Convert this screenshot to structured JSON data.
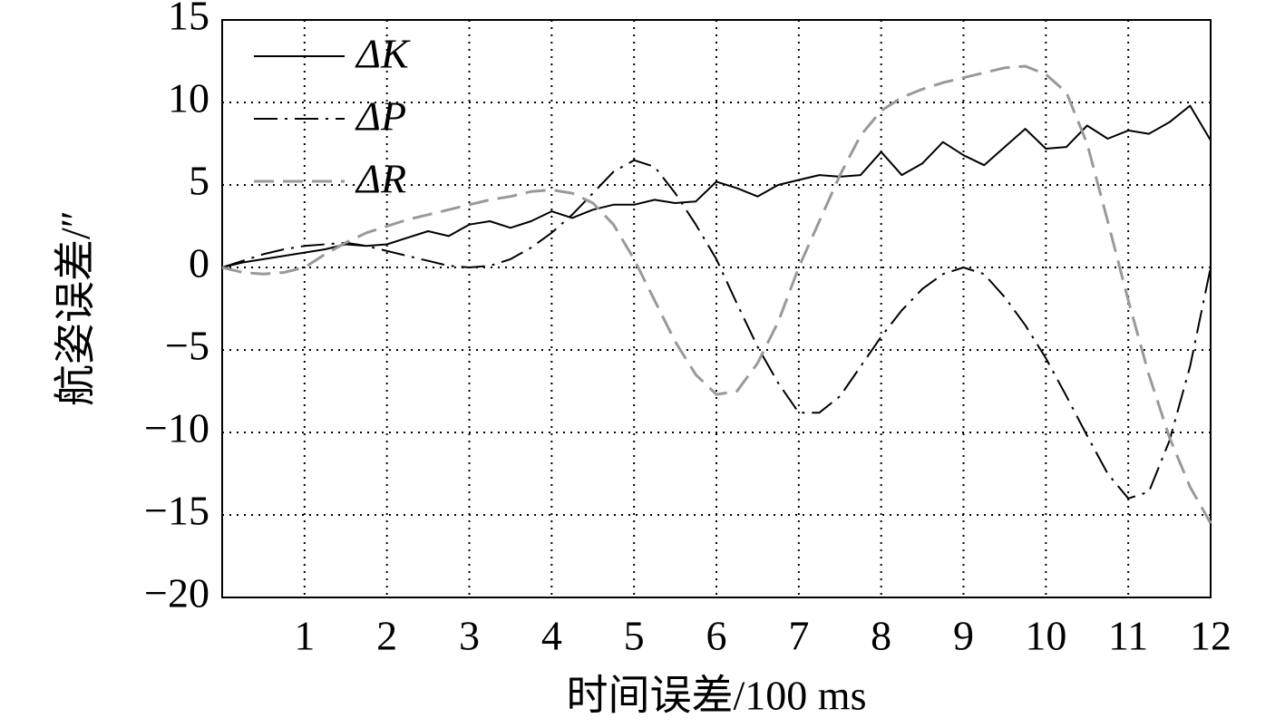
{
  "chart_data": {
    "type": "line",
    "x_label": "时间误差/100 ms",
    "y_label": "航姿误差/″",
    "x": [
      0,
      0.25,
      0.5,
      0.75,
      1,
      1.25,
      1.5,
      1.75,
      2,
      2.25,
      2.5,
      2.75,
      3,
      3.25,
      3.5,
      3.75,
      4,
      4.25,
      4.5,
      4.75,
      5,
      5.25,
      5.5,
      5.75,
      6,
      6.25,
      6.5,
      6.75,
      7,
      7.25,
      7.5,
      7.75,
      8,
      8.25,
      8.5,
      8.75,
      9,
      9.25,
      9.5,
      9.75,
      10,
      10.25,
      10.5,
      10.75,
      11,
      11.25,
      11.5,
      11.75,
      12
    ],
    "series": [
      {
        "name": "ΔK",
        "color": "#000000",
        "dash": "solid",
        "values": [
          0,
          0.3,
          0.5,
          0.7,
          0.9,
          1.1,
          1.4,
          1.3,
          1.4,
          1.8,
          2.2,
          1.9,
          2.6,
          2.8,
          2.4,
          2.8,
          3.4,
          3.0,
          3.5,
          3.8,
          3.8,
          4.1,
          3.9,
          4.0,
          5.2,
          4.8,
          4.3,
          5.0,
          5.3,
          5.6,
          5.5,
          5.6,
          7.0,
          5.6,
          6.3,
          7.6,
          6.8,
          6.2,
          7.3,
          8.4,
          7.2,
          7.3,
          8.6,
          7.8,
          8.3,
          8.1,
          8.8,
          9.8,
          7.7
        ]
      },
      {
        "name": "ΔP",
        "color": "#000000",
        "dash": "dashdot",
        "values": [
          0,
          0.4,
          0.8,
          1.1,
          1.3,
          1.4,
          1.5,
          1.3,
          1.0,
          0.7,
          0.4,
          0.1,
          0,
          0.1,
          0.5,
          1.2,
          2.1,
          3.2,
          4.5,
          5.8,
          6.5,
          6.1,
          4.5,
          2.6,
          0.5,
          -2.2,
          -4.8,
          -7.0,
          -8.8,
          -8.8,
          -7.8,
          -6.0,
          -4.2,
          -2.6,
          -1.3,
          -0.4,
          0,
          -0.4,
          -1.8,
          -3.5,
          -5.5,
          -7.8,
          -10.2,
          -12.5,
          -14.0,
          -13.6,
          -10.5,
          -6.0,
          0
        ]
      },
      {
        "name": "ΔR",
        "color": "#999999",
        "dash": "dashed",
        "values": [
          0,
          -0.3,
          -0.4,
          -0.3,
          0,
          0.8,
          1.5,
          2.1,
          2.5,
          2.9,
          3.2,
          3.5,
          3.8,
          4.1,
          4.3,
          4.6,
          4.7,
          4.5,
          3.9,
          2.6,
          0.5,
          -2.0,
          -4.5,
          -6.5,
          -7.7,
          -7.5,
          -5.8,
          -3.3,
          0,
          2.8,
          5.6,
          8.0,
          9.5,
          10.3,
          10.8,
          11.2,
          11.5,
          11.8,
          12.1,
          12.2,
          11.7,
          10.6,
          7.5,
          2.8,
          -2.0,
          -6.5,
          -10.3,
          -13.3,
          -15.5
        ]
      }
    ],
    "xlim": [
      0,
      12
    ],
    "xticks": [
      1,
      2,
      3,
      4,
      5,
      6,
      7,
      8,
      9,
      10,
      11,
      12
    ],
    "ylim": [
      -20,
      15
    ],
    "yticks": [
      {
        "value": -20,
        "label": "−20"
      },
      {
        "value": -15,
        "label": "−15"
      },
      {
        "value": -10,
        "label": "−10"
      },
      {
        "value": -5,
        "label": "−5"
      },
      0,
      5,
      10,
      15
    ],
    "grid": true,
    "legend": "upper left"
  }
}
